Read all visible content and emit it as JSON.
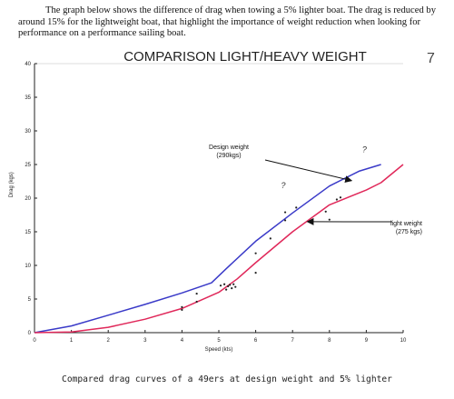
{
  "intro_text": "The graph below shows the difference of drag when towing a 5% lighter boat. The drag is reduced by around 15% for the lightweight boat, that highlight the importance of weight reduction when looking for performance on a performance sailing boat.",
  "page_number": "7",
  "caption": "Compared drag curves of a 49ers at design weight and 5% lighter",
  "chart_data": {
    "type": "line",
    "title": "COMPARISON LIGHT/HEAVY WEIGHT",
    "xlabel": "Speed (kts)",
    "ylabel": "Drag (kgs)",
    "xlim": [
      0,
      10
    ],
    "ylim": [
      0,
      40
    ],
    "xticks": [
      "0",
      "1",
      "2",
      "3",
      "4",
      "5",
      "6",
      "7",
      "8",
      "9",
      "10"
    ],
    "yticks": [
      "0",
      "5",
      "10",
      "15",
      "20",
      "25",
      "30",
      "35",
      "40"
    ],
    "grid": false,
    "series": [
      {
        "name": "Design weight (290kgs)",
        "color": "#3a3ac8",
        "x": [
          0,
          1,
          2,
          3,
          4,
          4.8,
          5.2,
          6,
          7,
          8,
          8.8,
          9.4
        ],
        "y": [
          0,
          1,
          2.6,
          4.2,
          5.9,
          7.4,
          9.5,
          13.6,
          17.8,
          21.8,
          24,
          25
        ]
      },
      {
        "name": "light weight (275 kgs)",
        "color": "#e0285a",
        "x": [
          0,
          1,
          2,
          3,
          4,
          5,
          5.5,
          6,
          7,
          8,
          9,
          9.4,
          10
        ],
        "y": [
          0,
          0.1,
          0.8,
          2.0,
          3.6,
          6.0,
          8.0,
          10.4,
          15.0,
          19.0,
          21.2,
          22.3,
          25
        ]
      }
    ],
    "scatter_points": [
      {
        "x": 4.0,
        "y": 3.8
      },
      {
        "x": 4.0,
        "y": 3.4
      },
      {
        "x": 4.4,
        "y": 5.8
      },
      {
        "x": 4.4,
        "y": 4.6
      },
      {
        "x": 5.05,
        "y": 7.0
      },
      {
        "x": 5.15,
        "y": 7.2
      },
      {
        "x": 5.2,
        "y": 6.4
      },
      {
        "x": 5.25,
        "y": 6.9
      },
      {
        "x": 5.3,
        "y": 7.1
      },
      {
        "x": 5.35,
        "y": 6.6
      },
      {
        "x": 5.4,
        "y": 7.2
      },
      {
        "x": 5.45,
        "y": 6.8
      },
      {
        "x": 6.0,
        "y": 11.8
      },
      {
        "x": 6.0,
        "y": 8.9
      },
      {
        "x": 6.4,
        "y": 14.0
      },
      {
        "x": 6.8,
        "y": 17.9
      },
      {
        "x": 6.8,
        "y": 16.7
      },
      {
        "x": 7.1,
        "y": 18.6
      },
      {
        "x": 7.9,
        "y": 18.0
      },
      {
        "x": 8.0,
        "y": 16.8
      },
      {
        "x": 8.2,
        "y": 19.8
      },
      {
        "x": 8.3,
        "y": 20.1
      }
    ],
    "annotations": [
      {
        "text": "Design weight\n(290kgs)",
        "target": "Design weight (290kgs)",
        "x": 8.6,
        "y": 22.6
      },
      {
        "text": "light weight\n(275 kgs)",
        "target": "light weight (275 kgs)",
        "x": 7.4,
        "y": 16.5
      }
    ],
    "handwritten_marks": [
      "?",
      "?"
    ]
  }
}
